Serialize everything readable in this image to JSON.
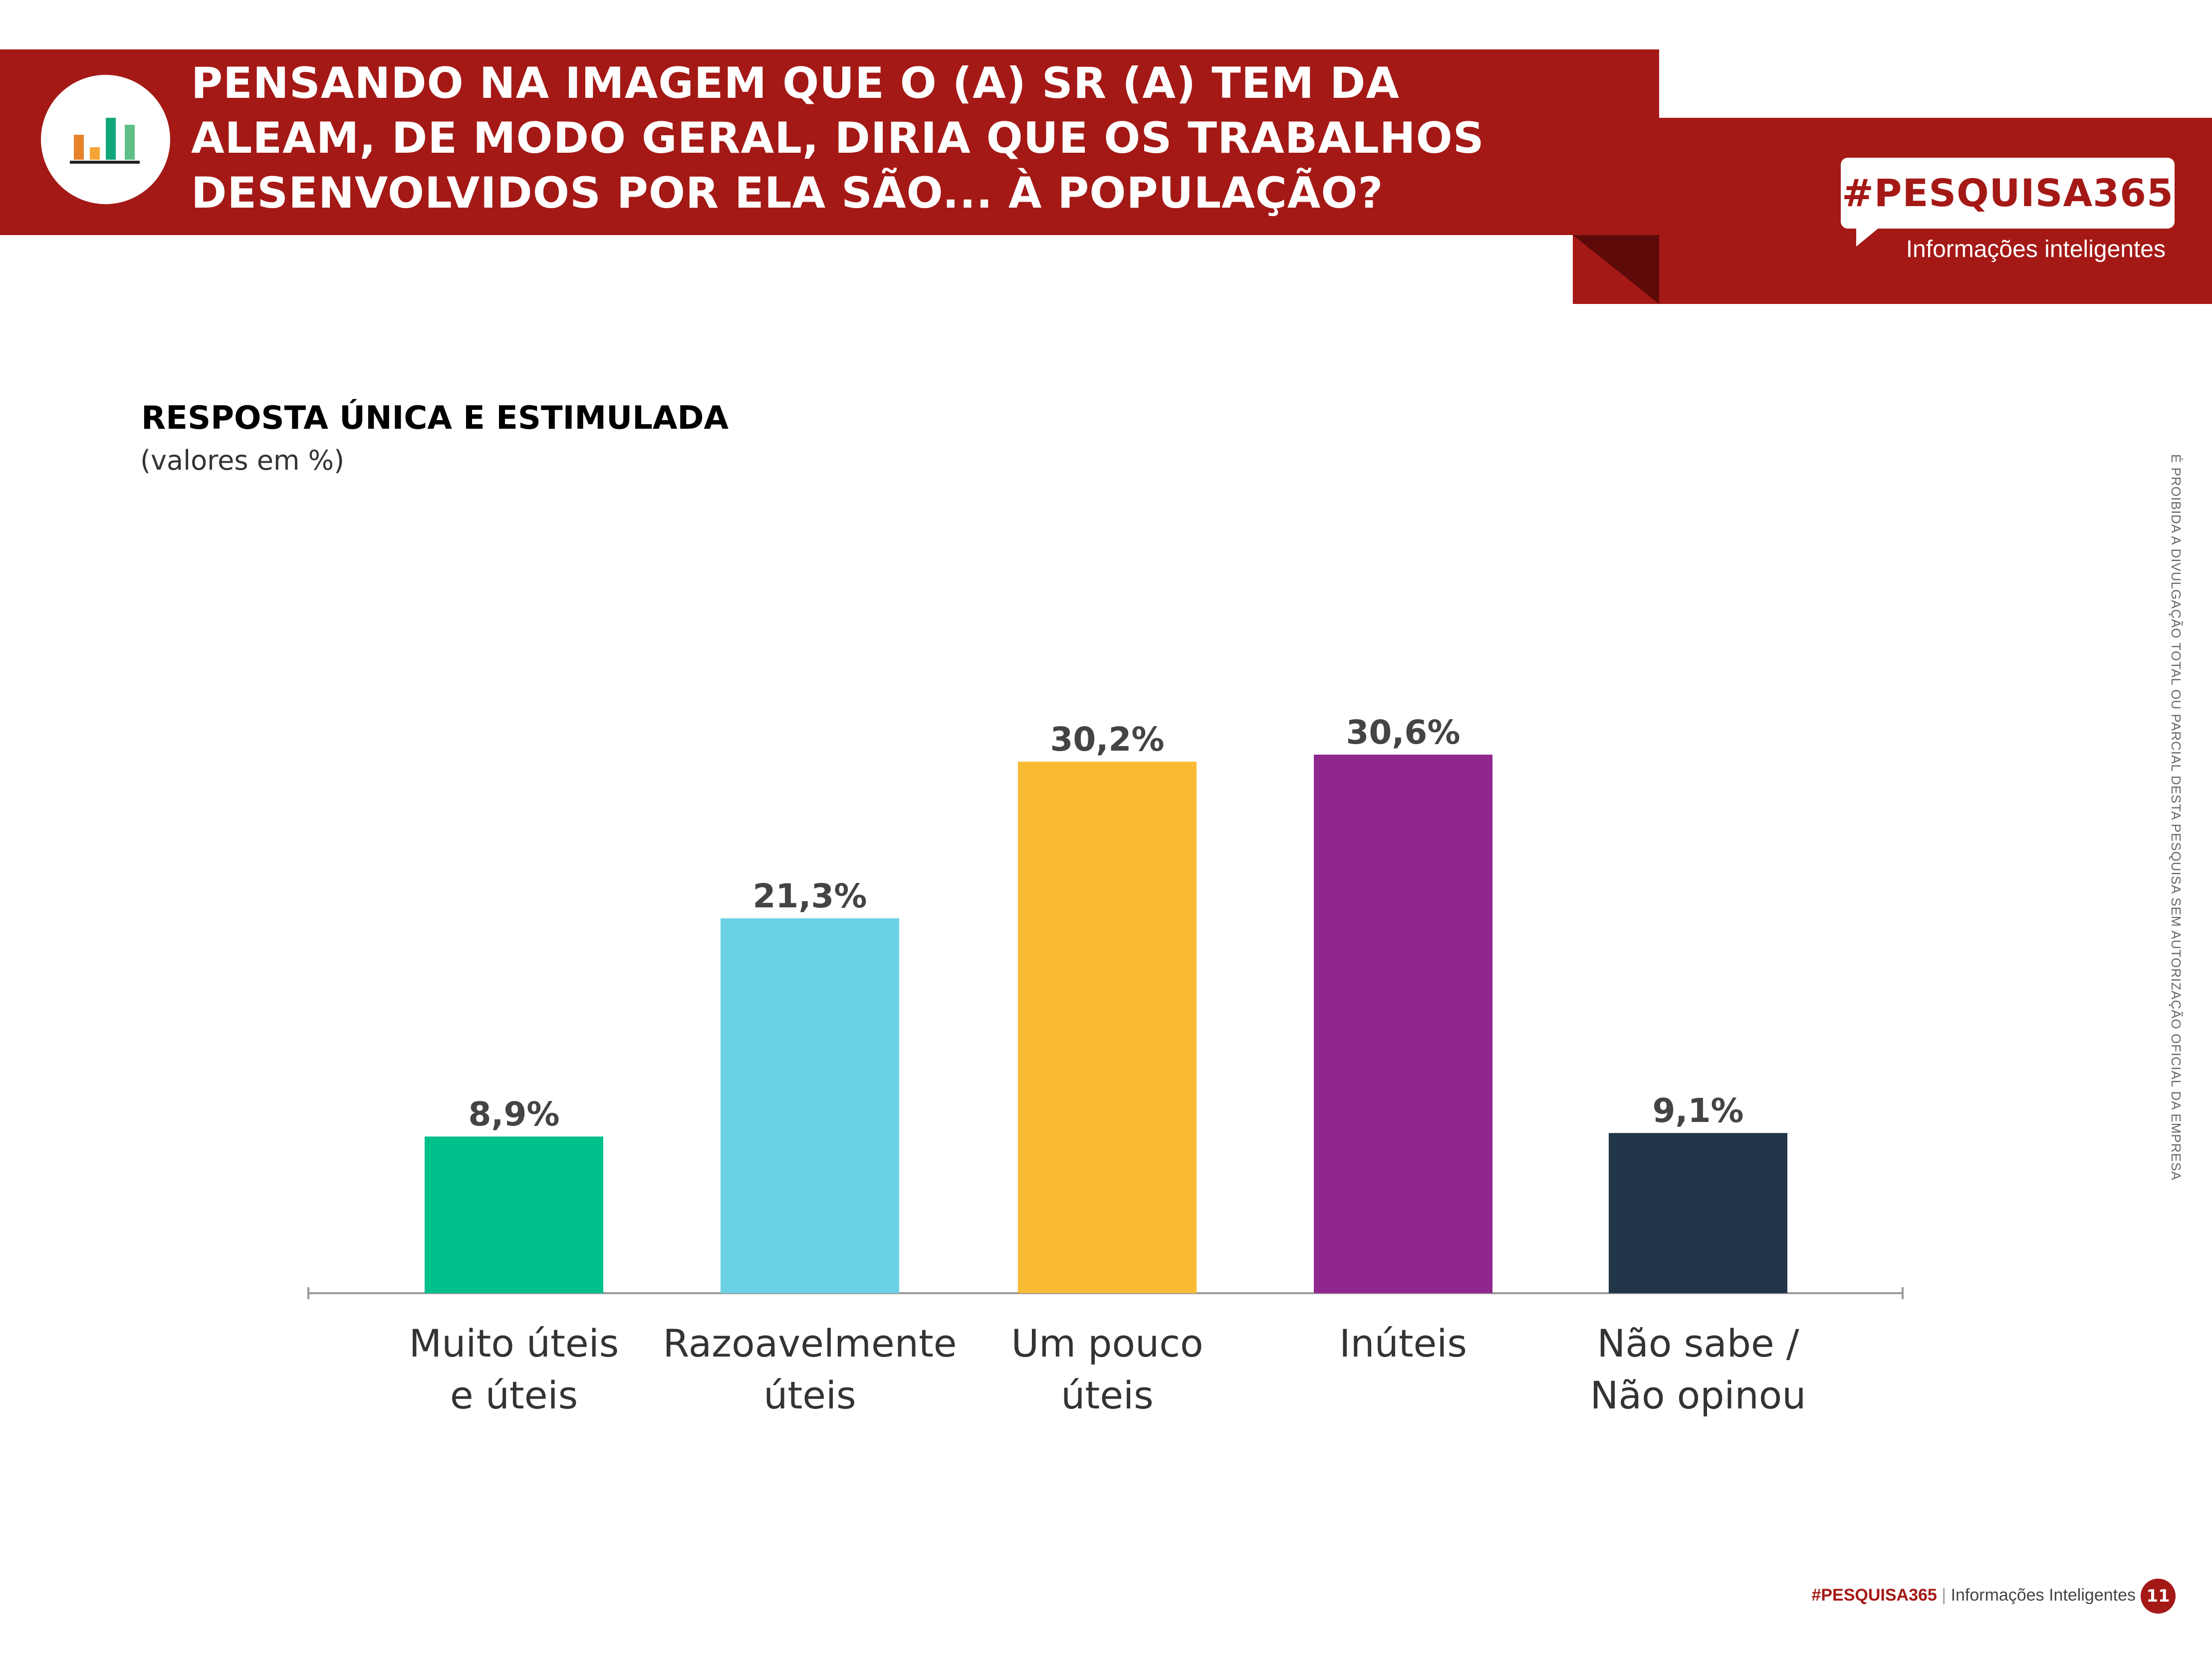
{
  "header": {
    "question_lines": [
      "PENSANDO NA IMAGEM QUE O (A) SR (A) TEM DA",
      "ALEAM, DE MODO GERAL, DIRIA QUE OS TRABALHOS",
      "DESENVOLVIDOS POR ELA SÃO... À POPULAÇÃO?"
    ],
    "icon": "bar-chart-icon"
  },
  "brand": {
    "tag": "#PESQUISA365",
    "subtitle": "Informações inteligentes"
  },
  "chart_heading": {
    "title": "RESPOSTA ÚNICA E ESTIMULADA",
    "subtitle": "(valores em %)"
  },
  "side_note": "É PROIBIDA A DIVULGAÇÃO TOTAL OU PARCIAL DESTA PESQUISA SEM AUTORIZAÇÃO OFICIAL DA EMPRESA",
  "footer": {
    "brand": "#PESQUISA365",
    "separator": "|",
    "subtitle": "Informações Inteligentes",
    "page_number": "11"
  },
  "chart_data": {
    "type": "bar",
    "categories": [
      [
        "Muito úteis",
        "e úteis"
      ],
      [
        "Razoavelmente",
        "úteis"
      ],
      [
        "Um pouco",
        "úteis"
      ],
      [
        "Inúteis"
      ],
      [
        "Não sabe /",
        "Não opinou"
      ]
    ],
    "values": [
      8.9,
      21.3,
      30.2,
      30.6,
      9.1
    ],
    "value_labels": [
      "8,9%",
      "21,3%",
      "30,2%",
      "30,6%",
      "9,1%"
    ],
    "colors": [
      "#00c08b",
      "#6bd2e6",
      "#f9bb33",
      "#90278e",
      "#22364a"
    ],
    "ylim": [
      0,
      30.6
    ],
    "grid": false,
    "legend": "none"
  }
}
